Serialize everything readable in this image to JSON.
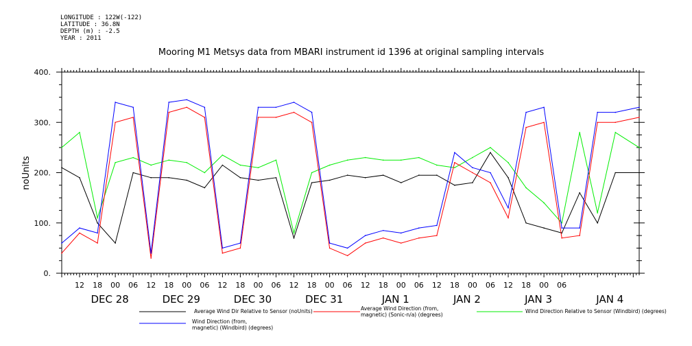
{
  "header": {
    "longitude": "LONGITUDE : 122W(-122)",
    "latitude": "LATITUDE : 36.8N",
    "depth": "DEPTH (m) : -2.5",
    "year": "YEAR : 2011"
  },
  "chart_data": {
    "type": "line",
    "title": "Mooring M1 Metsys data from MBARI instrument id 1396 at original sampling intervals",
    "ylabel": "noUnits",
    "xlabel": "",
    "ylim": [
      0,
      400
    ],
    "xlim_hours_range": "Dec 27 06:00 to Jan 4 08:00",
    "yticks": [
      "0.",
      "100.",
      "200.",
      "300.",
      "400."
    ],
    "xticks_hour": [
      "12",
      "18",
      "00",
      "06",
      "12",
      "18",
      "00",
      "06",
      "12",
      "18",
      "00",
      "06",
      "12",
      "18",
      "00",
      "06",
      "12",
      "18",
      "00",
      "06",
      "12",
      "18",
      "00",
      "06",
      "12",
      "18",
      "00",
      "06"
    ],
    "xticks_day": [
      "DEC 28",
      "DEC 29",
      "DEC 30",
      "DEC 31",
      "JAN  1",
      "JAN  2",
      "JAN  3",
      "JAN  4"
    ],
    "grid": false,
    "legend_position": "bottom",
    "series": [
      {
        "name": "Average Wind Dir Relative to Sensor (noUnits)",
        "color": "#000000",
        "x": [
          "Dec 27 06:00",
          "Dec 27 12:00",
          "Dec 27 18:00",
          "Dec 28 00:00",
          "Dec 28 06:00",
          "Dec 28 12:00",
          "Dec 28 18:00",
          "Dec 29 00:00",
          "Dec 29 06:00",
          "Dec 29 12:00",
          "Dec 29 18:00",
          "Dec 30 00:00",
          "Dec 30 06:00",
          "Dec 30 12:00",
          "Dec 30 18:00",
          "Dec 31 00:00",
          "Dec 31 06:00",
          "Dec 31 12:00",
          "Dec 31 18:00",
          "Jan 1 00:00",
          "Jan 1 06:00",
          "Jan 1 12:00",
          "Jan 1 18:00",
          "Jan 2 00:00",
          "Jan 2 06:00",
          "Jan 2 12:00",
          "Jan 2 18:00",
          "Jan 3 00:00",
          "Jan 3 06:00",
          "Jan 3 12:00",
          "Jan 3 18:00",
          "Jan 4 00:00",
          "Jan 4 08:00"
        ],
        "values": [
          210,
          190,
          100,
          60,
          200,
          190,
          190,
          185,
          170,
          215,
          190,
          185,
          190,
          70,
          180,
          185,
          195,
          190,
          195,
          180,
          195,
          195,
          175,
          180,
          240,
          190,
          100,
          90,
          80,
          160,
          100,
          200,
          200
        ]
      },
      {
        "name": "Average Wind Direction (from, magnetic) (Sonic-n/a) (degrees)",
        "color": "#ff0000",
        "x": [
          "Dec 27 06:00",
          "Dec 27 12:00",
          "Dec 27 18:00",
          "Dec 28 00:00",
          "Dec 28 06:00",
          "Dec 28 12:00",
          "Dec 28 18:00",
          "Dec 29 00:00",
          "Dec 29 06:00",
          "Dec 29 12:00",
          "Dec 29 18:00",
          "Dec 30 00:00",
          "Dec 30 06:00",
          "Dec 30 12:00",
          "Dec 30 18:00",
          "Dec 31 00:00",
          "Dec 31 06:00",
          "Dec 31 12:00",
          "Dec 31 18:00",
          "Jan 1 00:00",
          "Jan 1 06:00",
          "Jan 1 12:00",
          "Jan 1 18:00",
          "Jan 2 00:00",
          "Jan 2 06:00",
          "Jan 2 12:00",
          "Jan 2 18:00",
          "Jan 3 00:00",
          "Jan 3 06:00",
          "Jan 3 12:00",
          "Jan 3 18:00",
          "Jan 4 00:00",
          "Jan 4 08:00"
        ],
        "values": [
          40,
          80,
          60,
          300,
          310,
          30,
          320,
          330,
          310,
          40,
          50,
          310,
          310,
          320,
          300,
          50,
          35,
          60,
          70,
          60,
          70,
          75,
          220,
          200,
          180,
          110,
          290,
          300,
          70,
          75,
          300,
          300,
          310
        ]
      },
      {
        "name": "Wind Direction Relative to Sensor (Windbird) (degrees)",
        "color": "#00ee00",
        "x": [
          "Dec 27 06:00",
          "Dec 27 12:00",
          "Dec 27 18:00",
          "Dec 28 00:00",
          "Dec 28 06:00",
          "Dec 28 12:00",
          "Dec 28 18:00",
          "Dec 29 00:00",
          "Dec 29 06:00",
          "Dec 29 12:00",
          "Dec 29 18:00",
          "Dec 30 00:00",
          "Dec 30 06:00",
          "Dec 30 12:00",
          "Dec 30 18:00",
          "Dec 31 00:00",
          "Dec 31 06:00",
          "Dec 31 12:00",
          "Dec 31 18:00",
          "Jan 1 00:00",
          "Jan 1 06:00",
          "Jan 1 12:00",
          "Jan 1 18:00",
          "Jan 2 00:00",
          "Jan 2 06:00",
          "Jan 2 12:00",
          "Jan 2 18:00",
          "Jan 3 00:00",
          "Jan 3 06:00",
          "Jan 3 12:00",
          "Jan 3 18:00",
          "Jan 4 00:00",
          "Jan 4 08:00"
        ],
        "values": [
          250,
          280,
          110,
          220,
          230,
          215,
          225,
          220,
          200,
          235,
          215,
          210,
          225,
          80,
          200,
          215,
          225,
          230,
          225,
          225,
          230,
          215,
          210,
          230,
          250,
          220,
          170,
          140,
          100,
          280,
          120,
          280,
          250
        ]
      },
      {
        "name": "Wind Direction (from, magnetic) (Windbird) (degrees)",
        "color": "#0000ff",
        "x": [
          "Dec 27 06:00",
          "Dec 27 12:00",
          "Dec 27 18:00",
          "Dec 28 00:00",
          "Dec 28 06:00",
          "Dec 28 12:00",
          "Dec 28 18:00",
          "Dec 29 00:00",
          "Dec 29 06:00",
          "Dec 29 12:00",
          "Dec 29 18:00",
          "Dec 30 00:00",
          "Dec 30 06:00",
          "Dec 30 12:00",
          "Dec 30 18:00",
          "Dec 31 00:00",
          "Dec 31 06:00",
          "Dec 31 12:00",
          "Dec 31 18:00",
          "Jan 1 00:00",
          "Jan 1 06:00",
          "Jan 1 12:00",
          "Jan 1 18:00",
          "Jan 2 00:00",
          "Jan 2 06:00",
          "Jan 2 12:00",
          "Jan 2 18:00",
          "Jan 3 00:00",
          "Jan 3 06:00",
          "Jan 3 12:00",
          "Jan 3 18:00",
          "Jan 4 00:00",
          "Jan 4 08:00"
        ],
        "values": [
          60,
          90,
          80,
          340,
          330,
          40,
          340,
          345,
          330,
          50,
          60,
          330,
          330,
          340,
          320,
          60,
          50,
          75,
          85,
          80,
          90,
          95,
          240,
          210,
          200,
          130,
          320,
          330,
          90,
          90,
          320,
          320,
          330
        ]
      }
    ],
    "legend": [
      {
        "label_lines": [
          "Average Wind Dir Relative to Sensor (noUnits)"
        ],
        "color": "#000000"
      },
      {
        "label_lines": [
          "Average Wind Direction (from,",
          "magnetic) (Sonic-n/a) (degrees)"
        ],
        "color": "#ff0000"
      },
      {
        "label_lines": [
          "Wind Direction Relative to Sensor (Windbird) (degrees)"
        ],
        "color": "#00ee00"
      },
      {
        "label_lines": [
          "Wind Direction (from,",
          "magnetic) (Windbird) (degrees)"
        ],
        "color": "#0000ff"
      }
    ]
  }
}
